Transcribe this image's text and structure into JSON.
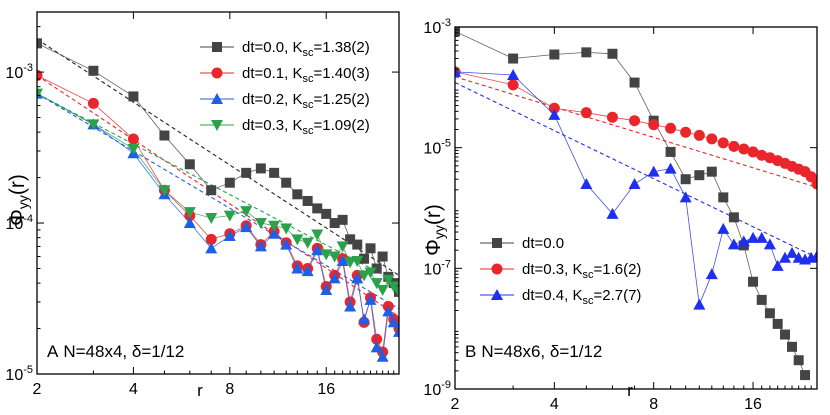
{
  "colors": {
    "dt_0_0": "#444444",
    "dt_0_1": "#e8262b",
    "dt_0_2": "#1f5fe6",
    "dt_0_3": "#2aa14a",
    "dt_0_4": "#1f2ff0",
    "fit_0_0": "#222222"
  },
  "chart_data": [
    {
      "type": "line",
      "panel_label": "A",
      "panel_text": "N=48x4, δ=1/12",
      "xlabel": "r",
      "ylabel": "Φyy(r)",
      "xscale": "log",
      "yscale": "log",
      "xlim": [
        2,
        27
      ],
      "ylim": [
        1e-05,
        0.0025
      ],
      "xticks": [
        2,
        4,
        8,
        16
      ],
      "yticks": [
        {
          "value": 1e-05,
          "mant": "10",
          "exp": "-5"
        },
        {
          "value": 0.0001,
          "mant": "10",
          "exp": "-4"
        },
        {
          "value": 0.001,
          "mant": "10",
          "exp": "-3"
        }
      ],
      "legend_position": "top-right",
      "series": [
        {
          "name": "dt=0.0, K",
          "sub": "sc",
          "tail": "=1.38(2)",
          "color": "#444444",
          "marker": "square",
          "fit": {
            "color": "#222222",
            "x": [
              2,
              27
            ],
            "y": [
              0.00165,
              4.5e-05
            ]
          },
          "x": [
            2,
            3,
            4,
            5,
            6,
            7,
            8,
            9,
            10,
            11,
            12,
            13,
            14,
            15,
            16,
            17,
            18,
            19,
            20,
            21,
            22,
            23,
            24,
            25,
            26,
            27
          ],
          "y": [
            0.00155,
            0.00102,
            0.00069,
            0.00038,
            0.000245,
            0.000165,
            0.000185,
            0.000215,
            0.00023,
            0.000215,
            0.000185,
            0.000155,
            0.00014,
            0.000125,
            0.000115,
            0.0001,
            0.000105,
            7.8e-05,
            7.2e-05,
            5.8e-05,
            6.8e-05,
            5e-05,
            6e-05,
            4.4e-05,
            4e-05,
            3.5e-05
          ]
        },
        {
          "name": "dt=0.1, K",
          "sub": "sc",
          "tail": "=1.40(3)",
          "color": "#e8262b",
          "marker": "circle",
          "fit": {
            "color": "#e8262b",
            "x": [
              2,
              27
            ],
            "y": [
              0.00095,
              2.4e-05
            ]
          },
          "x": [
            2,
            3,
            4,
            5,
            6,
            7,
            8,
            9,
            10,
            11,
            12,
            13,
            14,
            15,
            16,
            17,
            18,
            19,
            20,
            21,
            22,
            23,
            24,
            25,
            26,
            27
          ],
          "y": [
            0.00095,
            0.00062,
            0.00036,
            0.000165,
            0.000112,
            7.8e-05,
            8.5e-05,
            9.6e-05,
            7.2e-05,
            8.8e-05,
            7.4e-05,
            5.2e-05,
            5e-05,
            6.8e-05,
            3.8e-05,
            4.5e-05,
            5.8e-05,
            3e-05,
            4.5e-05,
            2.2e-05,
            3.2e-05,
            1.7e-05,
            1.4e-05,
            2.8e-05,
            2.3e-05,
            2e-05
          ]
        },
        {
          "name": "dt=0.2, K",
          "sub": "sc",
          "tail": "=1.25(2)",
          "color": "#1f5fe6",
          "marker": "triangle-up",
          "fit": {
            "color": "#1f5fe6",
            "x": [
              2,
              27
            ],
            "y": [
              0.00072,
              2.7e-05
            ]
          },
          "x": [
            2,
            3,
            4,
            5,
            6,
            7,
            8,
            9,
            10,
            11,
            12,
            13,
            14,
            15,
            16,
            17,
            18,
            19,
            20,
            21,
            22,
            23,
            24,
            25,
            26,
            27
          ],
          "y": [
            0.00072,
            0.00045,
            0.00029,
            0.000155,
            0.0001,
            6.8e-05,
            8.2e-05,
            9.4e-05,
            7e-05,
            8.5e-05,
            7.2e-05,
            5e-05,
            4.8e-05,
            6.6e-05,
            3.6e-05,
            4.3e-05,
            5.6e-05,
            2.8e-05,
            4.3e-05,
            2.3e-05,
            3.1e-05,
            1.5e-05,
            1.3e-05,
            2.6e-05,
            2.2e-05,
            1.9e-05
          ]
        },
        {
          "name": "dt=0.3, K",
          "sub": "sc",
          "tail": "=1.09(2)",
          "color": "#2aa14a",
          "marker": "triangle-down",
          "fit": {
            "color": "#2aa14a",
            "x": [
              2,
              27
            ],
            "y": [
              0.00072,
              4e-05
            ]
          },
          "x": [
            2,
            3,
            4,
            5,
            6,
            7,
            8,
            9,
            10,
            11,
            12,
            13,
            14,
            15,
            16,
            17,
            18,
            19,
            20,
            21,
            22,
            23,
            24,
            25,
            26,
            27
          ],
          "y": [
            0.00072,
            0.00045,
            0.00031,
            0.000165,
            0.000118,
            0.000108,
            0.000112,
            0.00012,
            0.0001,
            9.6e-05,
            9.2e-05,
            7.8e-05,
            7.4e-05,
            8.4e-05,
            6.2e-05,
            6e-05,
            7e-05,
            5.5e-05,
            5.6e-05,
            4.5e-05,
            4.7e-05,
            4e-05,
            3.6e-05,
            4.2e-05,
            3.8e-05,
            3.5e-05
          ]
        }
      ]
    },
    {
      "type": "line",
      "panel_label": "B",
      "panel_text": "N=48x6, δ=1/12",
      "xlabel": "r",
      "ylabel": "Φyy(r)",
      "xscale": "log",
      "yscale": "log",
      "xlim": [
        2,
        25
      ],
      "ylim": [
        1e-09,
        0.001
      ],
      "xticks": [
        2,
        4,
        8,
        16
      ],
      "yticks": [
        {
          "value": 1e-09,
          "mant": "10",
          "exp": "-9"
        },
        {
          "value": 1e-07,
          "mant": "10",
          "exp": "-7"
        },
        {
          "value": 1e-05,
          "mant": "10",
          "exp": "-5"
        },
        {
          "value": 0.001,
          "mant": "10",
          "exp": "-3"
        }
      ],
      "legend_position": "bottom-left",
      "series": [
        {
          "name": "dt=0.0",
          "sub": "",
          "tail": "",
          "color": "#444444",
          "marker": "square",
          "x": [
            2,
            3,
            4,
            5,
            6,
            7,
            8,
            9,
            10,
            11,
            12,
            13,
            14,
            15,
            16,
            17,
            18,
            19,
            20,
            21,
            22,
            23
          ],
          "y": [
            0.00085,
            0.0003,
            0.00035,
            0.00038,
            0.00036,
            0.00012,
            2.8e-05,
            8.5e-06,
            3e-06,
            3.5e-06,
            4e-06,
            1.5e-06,
            7e-07,
            2.4e-07,
            6e-08,
            3e-08,
            1.8e-08,
            1.2e-08,
            8e-09,
            5e-09,
            3e-09,
            1.7e-09
          ]
        },
        {
          "name": "dt=0.3, K",
          "sub": "sc",
          "tail": "=1.6(2)",
          "color": "#e8262b",
          "marker": "circle",
          "fit": {
            "color": "#e8262b",
            "x": [
              2,
              25
            ],
            "y": [
              0.00015,
              2.2e-06
            ]
          },
          "x": [
            2,
            3,
            4,
            5,
            6,
            7,
            8,
            9,
            10,
            11,
            12,
            13,
            14,
            15,
            16,
            17,
            18,
            19,
            20,
            21,
            22,
            23,
            24,
            25
          ],
          "y": [
            0.00018,
            0.00011,
            4.5e-05,
            3.8e-05,
            3.2e-05,
            2.8e-05,
            2.4e-05,
            2.1e-05,
            1.8e-05,
            1.6e-05,
            1.4e-05,
            1.2e-05,
            1.05e-05,
            9.5e-06,
            8.5e-06,
            7.5e-06,
            6.8e-06,
            6.1e-06,
            5.5e-06,
            4.9e-06,
            4.4e-06,
            4e-06,
            3.3e-06,
            2.5e-06
          ]
        },
        {
          "name": "dt=0.4, K",
          "sub": "sc",
          "tail": "=2.7(7)",
          "color": "#1f2ff0",
          "marker": "triangle-up",
          "fit": {
            "color": "#1f2ff0",
            "x": [
              2,
              25
            ],
            "y": [
              0.00012,
              1.5e-07
            ]
          },
          "x": [
            2,
            3,
            4,
            5,
            6,
            7,
            8,
            9,
            10,
            11,
            12,
            13,
            14,
            15,
            16,
            17,
            18,
            19,
            20,
            21,
            22,
            23,
            24,
            25
          ],
          "y": [
            0.00018,
            0.00016,
            3.5e-05,
            2.5e-06,
            8e-07,
            2.5e-06,
            4e-06,
            4.5e-06,
            1.5e-06,
            2.5e-08,
            8e-08,
            4.5e-07,
            2.5e-07,
            2.8e-07,
            3.2e-07,
            3.2e-07,
            2.5e-07,
            1.1e-07,
            1.5e-07,
            1.8e-07,
            1.5e-07,
            1.4e-07,
            1.5e-07,
            1.6e-07
          ]
        }
      ]
    }
  ]
}
